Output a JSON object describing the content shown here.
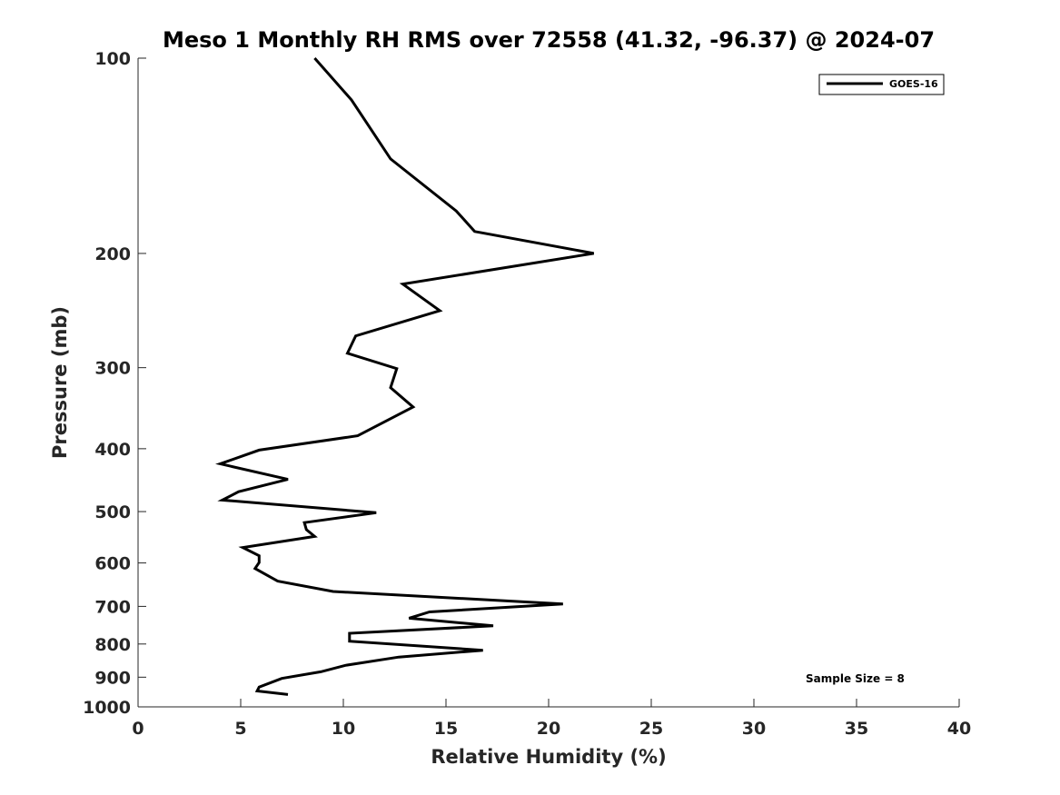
{
  "chart_data": {
    "type": "line",
    "title": "Meso 1 Monthly RH RMS over 72558 (41.32, -96.37) @ 2024-07",
    "xlabel": "Relative Humidity (%)",
    "ylabel": "Pressure (mb)",
    "xlim": [
      0,
      40
    ],
    "ylim": [
      100,
      1000
    ],
    "y_scale": "log",
    "y_reversed": true,
    "xticks": [
      0,
      5,
      10,
      15,
      20,
      25,
      30,
      35,
      40
    ],
    "xtick_labels": [
      "0",
      "5",
      "10",
      "15",
      "20",
      "25",
      "30",
      "35",
      "40"
    ],
    "yticks": [
      100,
      200,
      300,
      400,
      500,
      600,
      700,
      800,
      900,
      1000
    ],
    "ytick_labels": [
      "100",
      "200",
      "300",
      "400",
      "500",
      "600",
      "700",
      "800",
      "900",
      "1000"
    ],
    "grid": false,
    "legend_position": "top-right",
    "annotation": "Sample Size = 8",
    "series": [
      {
        "name": "GOES-16",
        "color": "#000000",
        "x": [
          8.6,
          10.4,
          12.3,
          15.5,
          16.4,
          22.2,
          12.9,
          14.7,
          10.6,
          10.2,
          12.6,
          12.3,
          13.4,
          10.7,
          5.9,
          4.0,
          7.3,
          4.9,
          4.1,
          11.6,
          8.1,
          8.2,
          8.6,
          5.1,
          5.9,
          5.9,
          5.7,
          6.8,
          9.5,
          20.7,
          14.2,
          13.2,
          17.3,
          10.3,
          10.3,
          16.8,
          12.7,
          10.1,
          8.9,
          7.0,
          5.9,
          5.8,
          7.3
        ],
        "y": [
          100,
          116,
          143,
          172,
          185,
          200,
          223,
          245,
          268,
          285,
          301,
          322,
          345,
          382,
          402,
          422,
          446,
          466,
          480,
          502,
          520,
          533,
          546,
          568,
          585,
          599,
          612,
          640,
          664,
          694,
          714,
          730,
          750,
          770,
          792,
          818,
          838,
          863,
          883,
          904,
          932,
          945,
          957
        ]
      }
    ]
  }
}
